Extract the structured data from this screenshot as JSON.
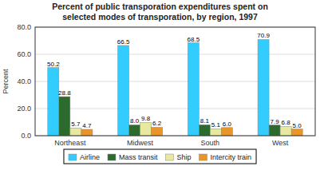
{
  "chart_data": {
    "type": "bar",
    "title": "Percent of public transporation expenditures spent on\nselected modes of transporation, by region, 1997",
    "y_label": "Percent",
    "categories": [
      "Northeast",
      "Midwest",
      "South",
      "West"
    ],
    "series": [
      {
        "name": "Airline",
        "color": "#33ccff",
        "values": [
          50.2,
          66.5,
          68.5,
          70.9
        ],
        "value_labels": [
          "50.2",
          "66.5",
          "68.5",
          "70.9"
        ]
      },
      {
        "name": "Mass transit",
        "color": "#2d6a2d",
        "values": [
          28.8,
          8.0,
          8.1,
          7.9
        ],
        "value_labels": [
          "28.8",
          "8.0",
          "8.1",
          "7.9"
        ]
      },
      {
        "name": "Ship",
        "color": "#e8e8a0",
        "values": [
          5.7,
          9.8,
          5.1,
          6.8
        ],
        "value_labels": [
          "5.7",
          "9.8",
          "5.1",
          "6.8"
        ]
      },
      {
        "name": "Intercity train",
        "color": "#e8952a",
        "values": [
          4.7,
          6.2,
          6.0,
          5.0
        ],
        "value_labels": [
          "4.7",
          "6.2",
          "6.0",
          "5.0"
        ]
      }
    ],
    "ylim": [
      0,
      80
    ],
    "yticks": [
      {
        "value": 0,
        "label": "0.0"
      },
      {
        "value": 20,
        "label": "20.0"
      },
      {
        "value": 40,
        "label": "40.0"
      },
      {
        "value": 60,
        "label": "60.0"
      },
      {
        "value": 80,
        "label": "80.0"
      }
    ],
    "grid": true,
    "legend": "bottom",
    "data_labels": true
  }
}
